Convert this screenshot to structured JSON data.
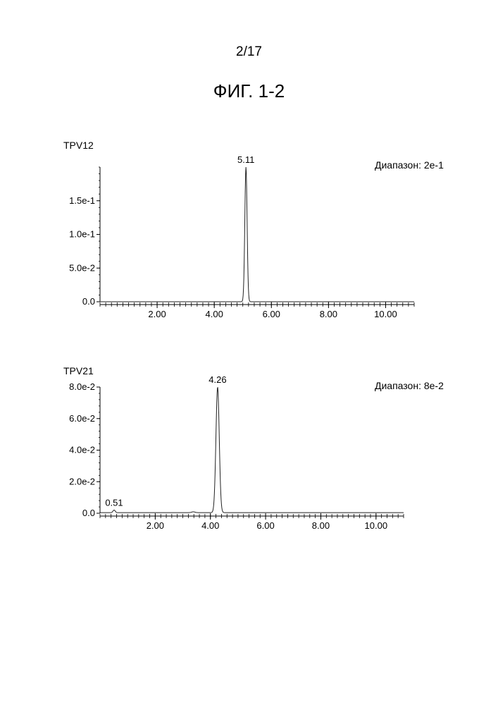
{
  "header": {
    "page_number": "2/17",
    "figure_title": "ФИГ. 1-2"
  },
  "chart_data": [
    {
      "type": "line",
      "trace_label": "TPV12",
      "range_label": "Диапазон: 2e-1",
      "x_ticks": [
        "2.00",
        "4.00",
        "6.00",
        "8.00",
        "10.00"
      ],
      "x_tick_values": [
        2,
        4,
        6,
        8,
        10
      ],
      "y_ticks": [
        "0.0",
        "5.0e-2",
        "1.0e-1",
        "1.5e-1"
      ],
      "y_tick_values": [
        0,
        0.05,
        0.1,
        0.15
      ],
      "xlim": [
        0,
        11.0
      ],
      "ylim": [
        0,
        0.2
      ],
      "peaks": [
        {
          "label": "5.11",
          "x": 5.11,
          "y": 0.2,
          "width": 0.04
        }
      ],
      "baseline": 0.0,
      "grid": false
    },
    {
      "type": "line",
      "trace_label": "TPV21",
      "range_label": "Диапазон: 8e-2",
      "x_ticks": [
        "2.00",
        "4.00",
        "6.00",
        "8.00",
        "10.00"
      ],
      "x_tick_values": [
        2,
        4,
        6,
        8,
        10
      ],
      "y_ticks": [
        "0.0",
        "2.0e-2",
        "4.0e-2",
        "6.0e-2",
        "8.0e-2"
      ],
      "y_tick_values": [
        0,
        0.02,
        0.04,
        0.06,
        0.08
      ],
      "xlim": [
        0,
        11.0
      ],
      "ylim": [
        0,
        0.08
      ],
      "peaks": [
        {
          "label": "0.51",
          "x": 0.51,
          "y": 0.002,
          "width": 0.04
        },
        {
          "label": "",
          "x": 3.38,
          "y": 0.0009,
          "width": 0.06
        },
        {
          "label": "4.26",
          "x": 4.26,
          "y": 0.08,
          "width": 0.06
        }
      ],
      "baseline": 0.0004,
      "grid": false
    }
  ]
}
